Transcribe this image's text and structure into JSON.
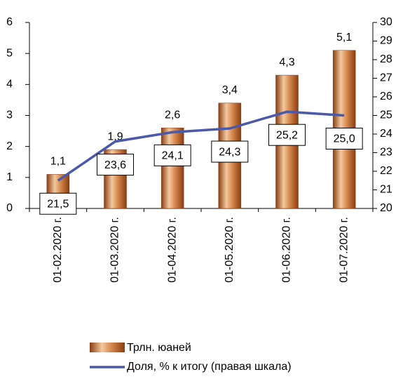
{
  "chart_data": {
    "type": "bar_line",
    "categories": [
      "01-02.2020 г.",
      "01-03.2020 г.",
      "01-04.2020 г.",
      "01-05.2020 г.",
      "01-06.2020 г.",
      "01-07.2020 г."
    ],
    "series": [
      {
        "name": "Трлн. юаней",
        "type": "bar",
        "color": "#c8733a",
        "values": [
          1.1,
          1.9,
          2.6,
          3.4,
          4.3,
          5.1
        ],
        "value_labels": [
          "1,1",
          "1,9",
          "2,6",
          "3,4",
          "4,3",
          "5,1"
        ]
      },
      {
        "name": "Доля, % к итогу (правая шкала)",
        "type": "line",
        "axis": "y2",
        "color": "#4a5aa8",
        "values": [
          21.5,
          23.6,
          24.1,
          24.3,
          25.2,
          25.0
        ],
        "value_labels": [
          "21,5",
          "23,6",
          "24,1",
          "24,3",
          "25,2",
          "25,0"
        ]
      }
    ],
    "ylim": [
      0,
      6
    ],
    "yticks": [
      0,
      1,
      2,
      3,
      4,
      5,
      6
    ],
    "y2lim": [
      20,
      30
    ],
    "y2ticks": [
      20,
      21,
      22,
      23,
      24,
      25,
      26,
      27,
      28,
      29,
      30
    ],
    "legend": "bottom"
  }
}
